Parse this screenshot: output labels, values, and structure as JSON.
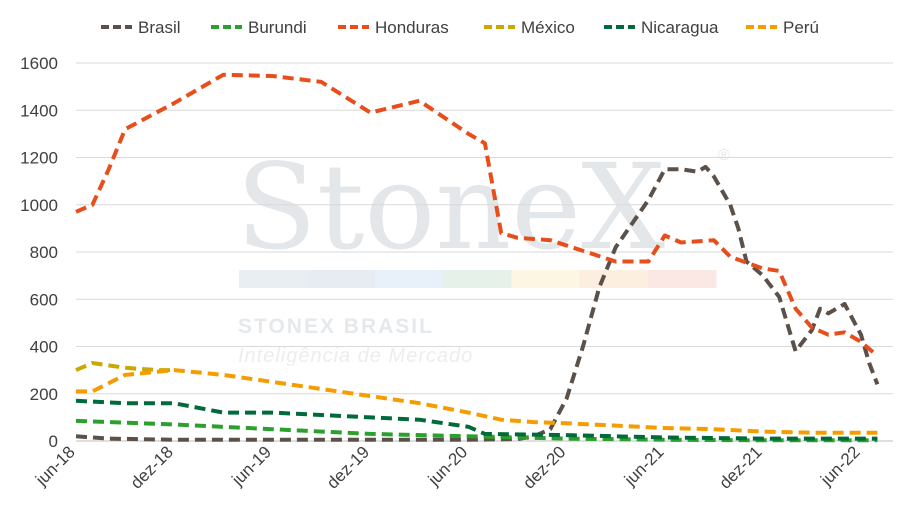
{
  "chart_data": {
    "type": "line",
    "title": "",
    "xlabel": "",
    "ylabel": "",
    "ylim": [
      0,
      1600
    ],
    "yticks": [
      "0",
      "200",
      "400",
      "600",
      "800",
      "1000",
      "1200",
      "1400",
      "1600"
    ],
    "xlim": [
      0,
      48
    ],
    "xticks": [
      {
        "label": "jun-18",
        "x": 0
      },
      {
        "label": "dez-18",
        "x": 6
      },
      {
        "label": "jun-19",
        "x": 12
      },
      {
        "label": "dez-19",
        "x": 18
      },
      {
        "label": "jun-20",
        "x": 24
      },
      {
        "label": "dez-20",
        "x": 30
      },
      {
        "label": "jun-21",
        "x": 36
      },
      {
        "label": "dez-21",
        "x": 42
      },
      {
        "label": "jun-22",
        "x": 48
      }
    ],
    "grid": "horizontal",
    "legend_position": "top",
    "series": [
      {
        "name": "Brasil",
        "color": "#5b5149",
        "points": [
          [
            0,
            20
          ],
          [
            2,
            10
          ],
          [
            6,
            5
          ],
          [
            12,
            5
          ],
          [
            18,
            5
          ],
          [
            24,
            5
          ],
          [
            27,
            8
          ],
          [
            28,
            20
          ],
          [
            29,
            50
          ],
          [
            30,
            180
          ],
          [
            31,
            400
          ],
          [
            32,
            650
          ],
          [
            33,
            820
          ],
          [
            34,
            920
          ],
          [
            35,
            1020
          ],
          [
            36,
            1150
          ],
          [
            37,
            1150
          ],
          [
            38,
            1140
          ],
          [
            38.5,
            1160
          ],
          [
            39,
            1120
          ],
          [
            40,
            1000
          ],
          [
            40.5,
            900
          ],
          [
            41,
            760
          ],
          [
            41.5,
            730
          ],
          [
            42,
            700
          ],
          [
            43,
            610
          ],
          [
            44,
            380
          ],
          [
            45,
            470
          ],
          [
            45.5,
            560
          ],
          [
            46,
            540
          ],
          [
            47,
            580
          ],
          [
            48,
            450
          ],
          [
            48.5,
            330
          ],
          [
            49,
            240
          ]
        ]
      },
      {
        "name": "Burundi",
        "color": "#2ca02c",
        "points": [
          [
            0,
            85
          ],
          [
            6,
            70
          ],
          [
            12,
            50
          ],
          [
            18,
            30
          ],
          [
            24,
            20
          ],
          [
            30,
            10
          ],
          [
            36,
            5
          ],
          [
            42,
            3
          ],
          [
            49,
            3
          ]
        ]
      },
      {
        "name": "Honduras",
        "color": "#e84e1b",
        "points": [
          [
            0,
            970
          ],
          [
            1,
            1000
          ],
          [
            2,
            1150
          ],
          [
            3,
            1320
          ],
          [
            6,
            1430
          ],
          [
            9,
            1550
          ],
          [
            12,
            1545
          ],
          [
            15,
            1520
          ],
          [
            18,
            1390
          ],
          [
            21,
            1440
          ],
          [
            24,
            1300
          ],
          [
            25,
            1260
          ],
          [
            26,
            880
          ],
          [
            27,
            860
          ],
          [
            29,
            850
          ],
          [
            33,
            760
          ],
          [
            35,
            760
          ],
          [
            36,
            870
          ],
          [
            37,
            840
          ],
          [
            39,
            850
          ],
          [
            40,
            780
          ],
          [
            42,
            730
          ],
          [
            43,
            720
          ],
          [
            44,
            560
          ],
          [
            45,
            480
          ],
          [
            46,
            450
          ],
          [
            47,
            460
          ],
          [
            48,
            420
          ],
          [
            49,
            360
          ]
        ]
      },
      {
        "name": "México",
        "color": "#c9a800",
        "points": [
          [
            0,
            300
          ],
          [
            1,
            330
          ],
          [
            3,
            310
          ],
          [
            5,
            300
          ],
          [
            6,
            300
          ]
        ]
      },
      {
        "name": "Nicaragua",
        "color": "#006b3a",
        "points": [
          [
            0,
            170
          ],
          [
            3,
            160
          ],
          [
            6,
            160
          ],
          [
            9,
            120
          ],
          [
            12,
            120
          ],
          [
            15,
            110
          ],
          [
            18,
            100
          ],
          [
            21,
            90
          ],
          [
            24,
            60
          ],
          [
            25,
            30
          ],
          [
            30,
            25
          ],
          [
            36,
            15
          ],
          [
            42,
            10
          ],
          [
            49,
            10
          ]
        ]
      },
      {
        "name": "Perú",
        "color": "#f59c00",
        "points": [
          [
            0,
            210
          ],
          [
            1,
            210
          ],
          [
            3,
            280
          ],
          [
            6,
            300
          ],
          [
            9,
            280
          ],
          [
            12,
            250
          ],
          [
            15,
            220
          ],
          [
            18,
            190
          ],
          [
            21,
            160
          ],
          [
            24,
            120
          ],
          [
            26,
            90
          ],
          [
            28,
            80
          ],
          [
            30,
            75
          ],
          [
            33,
            65
          ],
          [
            36,
            55
          ],
          [
            39,
            50
          ],
          [
            42,
            40
          ],
          [
            45,
            35
          ],
          [
            49,
            35
          ]
        ]
      }
    ]
  },
  "watermark": {
    "brand": "StoneX",
    "registered": "®",
    "line1": "STONEX BRASIL",
    "line2": "Inteligência de Mercado",
    "bar_colors": [
      "#e9eef2",
      "#e7ecf3",
      "#e8f0f9",
      "#e6f1ea",
      "#fdf6e2",
      "#fcefe0",
      "#fbe7e4"
    ]
  }
}
